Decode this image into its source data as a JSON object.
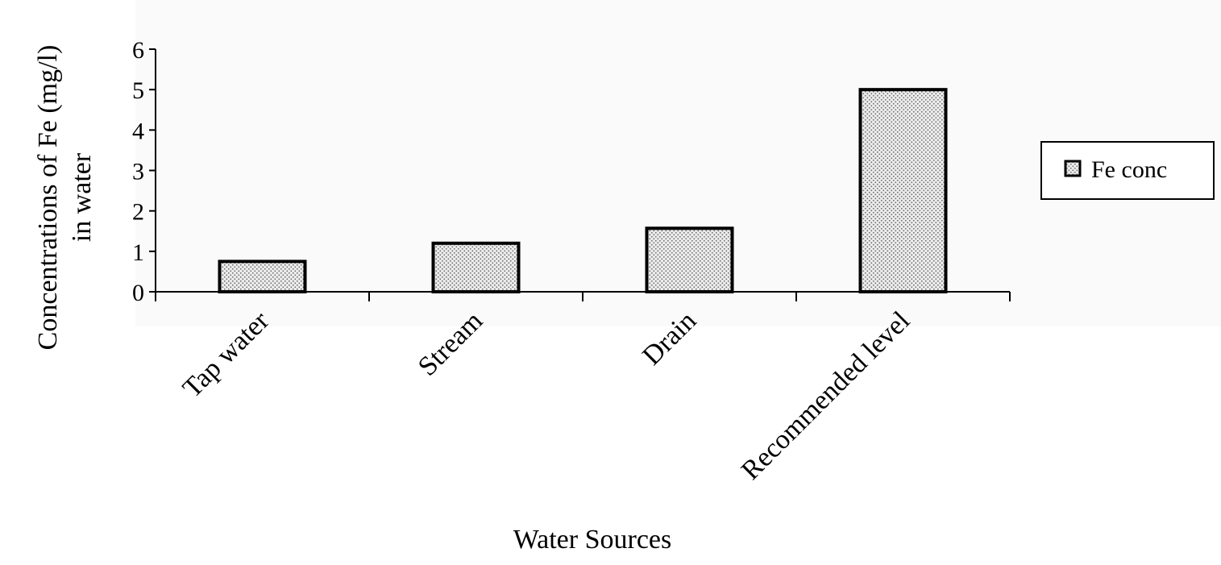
{
  "chart_data": {
    "type": "bar",
    "xlabel": "Water Sources",
    "ylabel_line1": "Concentrations of Fe (mg/l)",
    "ylabel_line2": "in water",
    "categories": [
      "Tap water",
      "Stream",
      "Drain",
      "Recommended level"
    ],
    "series": [
      {
        "name": "Fe conc",
        "values": [
          0.75,
          1.2,
          1.57,
          5.0
        ]
      }
    ],
    "ylim": [
      0,
      6
    ],
    "yticks": [
      "0",
      "1",
      "2",
      "3",
      "4",
      "5",
      "6"
    ],
    "grid": false,
    "legend_position": "right",
    "bar_fill": "dotted light gray pattern",
    "bar_outline_color": "#000000"
  }
}
